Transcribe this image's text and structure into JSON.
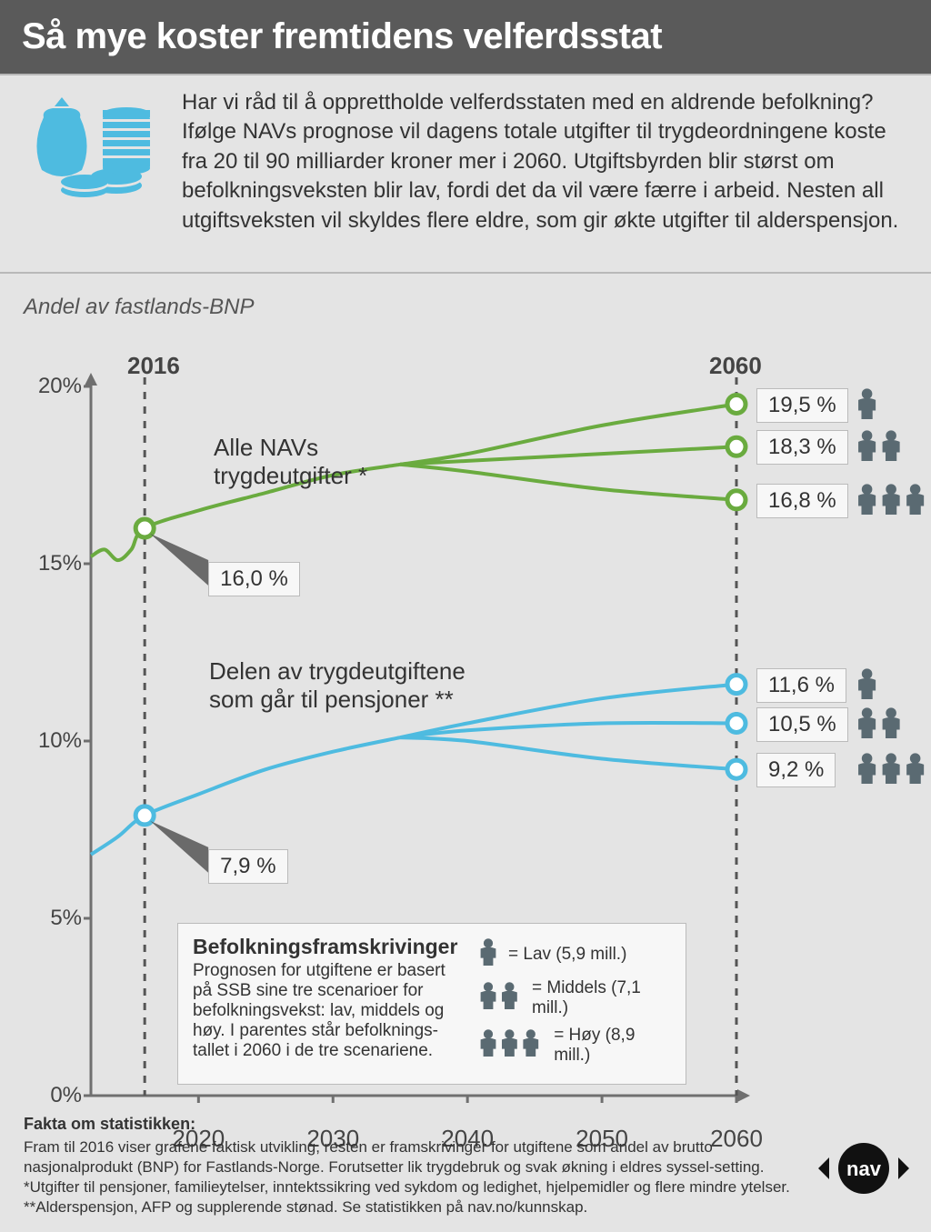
{
  "title": "Så mye koster fremtidens velferdsstat",
  "intro": "Har vi råd til å opprettholde velferdsstaten med en aldrende befolkning? Ifølge NAVs prognose vil dagens totale utgifter til trygdeordningene koste fra 20 til 90 milliarder kroner mer i 2060. Utgiftsbyrden blir størst om befolkningsveksten blir lav, fordi det da vil være færre i arbeid. Nesten all utgiftsveksten vil skyldes flere eldre, som gir økte utgifter til alderspensjon.",
  "axis_label": "Andel av fastlands-BNP",
  "year_start": "2016",
  "year_end": "2060",
  "colors": {
    "green": "#6aab3f",
    "blue": "#4ebbe0",
    "icon_blue": "#4ebbe0",
    "person": "#5a6a72",
    "axis": "#6f6f6f",
    "dashed": "#555555",
    "bg": "#e4e4e4",
    "box_bg": "#f7f7f7",
    "box_border": "#bbbbbb"
  },
  "chart": {
    "type": "line",
    "ylim": [
      0,
      20
    ],
    "ytick_step": 5,
    "yticks": [
      "0%",
      "5%",
      "10%",
      "15%",
      "20%"
    ],
    "xlim": [
      2012,
      2060
    ],
    "xticks": [
      "2020",
      "2030",
      "2040",
      "2050",
      "2060"
    ],
    "line_width": 4,
    "marker_radius": 10,
    "marker_stroke": 5,
    "green_series": {
      "label": "Alle NAVs trygdeutgifter *",
      "start_value": "16,0 %",
      "start_value_num": 16.0,
      "common": [
        {
          "x": 2012,
          "y": 15.2
        },
        {
          "x": 2013,
          "y": 15.4
        },
        {
          "x": 2014,
          "y": 15.1
        },
        {
          "x": 2015,
          "y": 15.4
        },
        {
          "x": 2016,
          "y": 16.0
        },
        {
          "x": 2020,
          "y": 16.5
        },
        {
          "x": 2025,
          "y": 17.0
        },
        {
          "x": 2030,
          "y": 17.5
        },
        {
          "x": 2035,
          "y": 17.8
        }
      ],
      "branches": [
        {
          "end_label": "19,5 %",
          "persons": 1,
          "points": [
            {
              "x": 2035,
              "y": 17.8
            },
            {
              "x": 2040,
              "y": 18.1
            },
            {
              "x": 2050,
              "y": 18.9
            },
            {
              "x": 2060,
              "y": 19.5
            }
          ]
        },
        {
          "end_label": "18,3 %",
          "persons": 2,
          "points": [
            {
              "x": 2035,
              "y": 17.8
            },
            {
              "x": 2040,
              "y": 17.9
            },
            {
              "x": 2050,
              "y": 18.1
            },
            {
              "x": 2060,
              "y": 18.3
            }
          ]
        },
        {
          "end_label": "16,8 %",
          "persons": 3,
          "points": [
            {
              "x": 2035,
              "y": 17.8
            },
            {
              "x": 2040,
              "y": 17.6
            },
            {
              "x": 2050,
              "y": 17.1
            },
            {
              "x": 2060,
              "y": 16.8
            }
          ]
        }
      ]
    },
    "blue_series": {
      "label": "Delen av trygdeutgiftene som går til pensjoner **",
      "start_value": "7,9 %",
      "start_value_num": 7.9,
      "common": [
        {
          "x": 2012,
          "y": 6.8
        },
        {
          "x": 2014,
          "y": 7.3
        },
        {
          "x": 2016,
          "y": 7.9
        },
        {
          "x": 2020,
          "y": 8.5
        },
        {
          "x": 2025,
          "y": 9.2
        },
        {
          "x": 2030,
          "y": 9.7
        },
        {
          "x": 2035,
          "y": 10.1
        }
      ],
      "branches": [
        {
          "end_label": "11,6 %",
          "persons": 1,
          "points": [
            {
              "x": 2035,
              "y": 10.1
            },
            {
              "x": 2040,
              "y": 10.5
            },
            {
              "x": 2050,
              "y": 11.2
            },
            {
              "x": 2060,
              "y": 11.6
            }
          ]
        },
        {
          "end_label": "10,5 %",
          "persons": 2,
          "points": [
            {
              "x": 2035,
              "y": 10.1
            },
            {
              "x": 2040,
              "y": 10.3
            },
            {
              "x": 2050,
              "y": 10.5
            },
            {
              "x": 2060,
              "y": 10.5
            }
          ]
        },
        {
          "end_label": "9,2 %",
          "persons": 3,
          "points": [
            {
              "x": 2035,
              "y": 10.1
            },
            {
              "x": 2040,
              "y": 10.0
            },
            {
              "x": 2050,
              "y": 9.5
            },
            {
              "x": 2060,
              "y": 9.2
            }
          ]
        }
      ]
    }
  },
  "legend": {
    "title": "Befolkningsframskrivinger",
    "text": "Prognosen for utgiftene er basert på SSB sine tre scenarioer for befolkningsvekst: lav, middels og høy. I parentes står befolknings-tallet i 2060 i de tre scenariene.",
    "scenarios": [
      {
        "persons": 1,
        "label": "= Lav (5,9 mill.)"
      },
      {
        "persons": 2,
        "label": "= Middels (7,1 mill.)"
      },
      {
        "persons": 3,
        "label": "= Høy (8,9 mill.)"
      }
    ]
  },
  "footer": {
    "title": "Fakta om statistikken:",
    "text": "Fram til 2016 viser grafene faktisk utvikling, resten er framskrivinger for utgiftene som andel av brutto nasjonalprodukt (BNP) for Fastlands-Norge. Forutsetter lik trygdebruk og svak økning i eldres syssel-setting. *Utgifter til pensjoner, familieytelser, inntektssikring ved sykdom og ledighet, hjelpemidler og flere mindre ytelser. **Alderspensjon, AFP og supplerende stønad. Se statistikken på nav.no/kunnskap."
  }
}
